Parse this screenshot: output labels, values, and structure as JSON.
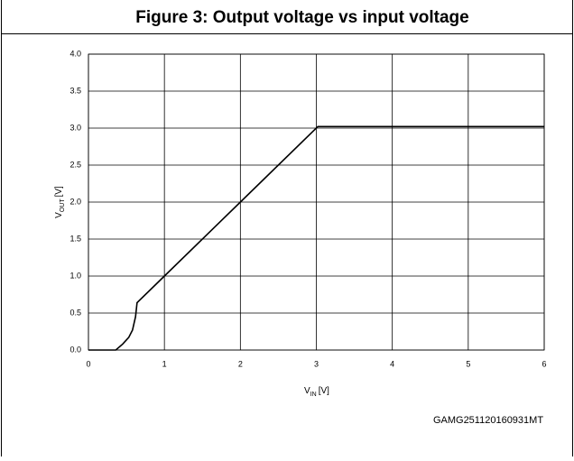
{
  "chart_data": {
    "type": "line",
    "title": "Figure 3: Output voltage vs input voltage",
    "xlabel": {
      "main": "V",
      "sub": "IN",
      "unit": "[V]"
    },
    "ylabel": {
      "main": "V",
      "sub": "OUT",
      "unit": "[V]"
    },
    "footnote": "GAMG251120160931MT",
    "x": [
      0,
      0.36,
      0.45,
      0.53,
      0.58,
      0.62,
      0.64,
      1,
      2,
      3.02,
      6
    ],
    "series": [
      {
        "name": "VOUT",
        "color": "#000000",
        "values": [
          0,
          0,
          0.08,
          0.17,
          0.27,
          0.45,
          0.64,
          1,
          2,
          3.02,
          3.02
        ]
      }
    ],
    "xlim": [
      0,
      6
    ],
    "xticks": [
      0,
      1,
      2,
      3,
      4,
      5,
      6
    ],
    "ylim": [
      0,
      4
    ],
    "yticks": [
      {
        "value": 0,
        "label": "0.0"
      },
      0.5,
      {
        "value": 1,
        "label": "1.0"
      },
      1.5,
      {
        "value": 2,
        "label": "2.0"
      },
      2.5,
      {
        "value": 3,
        "label": "3.0"
      },
      3.5,
      {
        "value": 4,
        "label": "4.0"
      }
    ],
    "grid": true
  }
}
